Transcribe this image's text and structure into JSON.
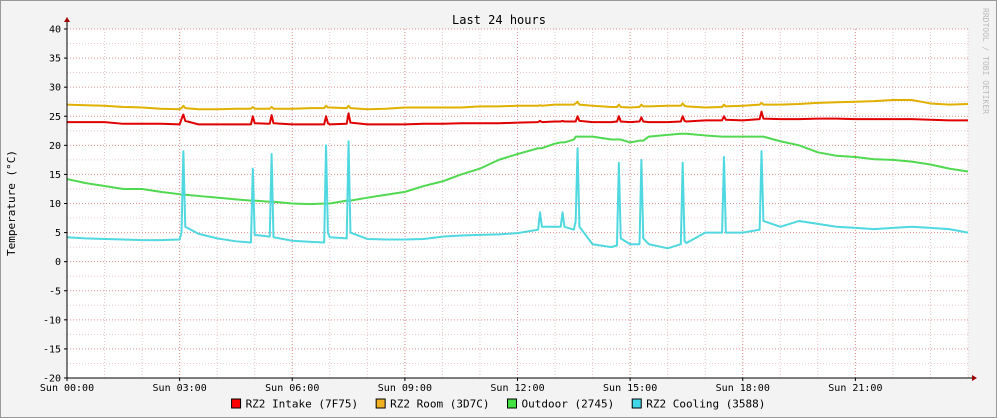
{
  "chart_data": {
    "type": "line",
    "title": "Last 24 hours",
    "y_label": "Temperature (°C)",
    "watermark": "RRDTOOL / TOBI OETIKER",
    "x": [
      0,
      0.5,
      1,
      1.5,
      2,
      2.5,
      3,
      3.05,
      3.1,
      3.15,
      3.5,
      4,
      4.5,
      4.9,
      4.95,
      5,
      5.4,
      5.45,
      5.5,
      6,
      6.5,
      6.85,
      6.9,
      6.95,
      7,
      7.45,
      7.5,
      7.55,
      8,
      8.5,
      9,
      9.5,
      10,
      10.5,
      11,
      11.5,
      12,
      12.55,
      12.6,
      12.65,
      13,
      13.15,
      13.2,
      13.25,
      13.5,
      13.55,
      13.6,
      13.65,
      14,
      14.5,
      14.65,
      14.7,
      14.75,
      15,
      15.25,
      15.3,
      15.35,
      15.5,
      16,
      16.35,
      16.4,
      16.45,
      16.5,
      17,
      17.45,
      17.5,
      17.55,
      18,
      18.45,
      18.5,
      18.55,
      19,
      19.5,
      20,
      20.5,
      21,
      21.5,
      22,
      22.5,
      23,
      23.5,
      24
    ],
    "series": [
      {
        "name": "RZ2 Intake (7F75)",
        "color": "#e00000",
        "values": [
          24,
          24,
          24,
          23.7,
          23.7,
          23.7,
          23.6,
          24.5,
          25.3,
          24.2,
          23.6,
          23.6,
          23.6,
          23.6,
          25,
          23.8,
          23.7,
          25.2,
          23.8,
          23.6,
          23.6,
          23.6,
          25,
          23.8,
          23.6,
          23.7,
          25.5,
          23.9,
          23.6,
          23.6,
          23.6,
          23.7,
          23.7,
          23.8,
          23.8,
          23.8,
          23.9,
          24,
          24.2,
          24,
          24.1,
          24.1,
          24.2,
          24.1,
          24.1,
          24.1,
          25,
          24.2,
          24,
          24,
          24.1,
          25,
          24.1,
          24,
          24.1,
          24.8,
          24.1,
          24,
          24,
          24.1,
          25,
          24.2,
          24.1,
          24.3,
          24.3,
          25,
          24.4,
          24.3,
          24.5,
          25.8,
          24.6,
          24.5,
          24.5,
          24.6,
          24.6,
          24.5,
          24.5,
          24.5,
          24.5,
          24.4,
          24.3,
          24.3
        ]
      },
      {
        "name": "RZ2 Room (3D7C)",
        "color": "#e0b000",
        "values": [
          27,
          26.9,
          26.8,
          26.6,
          26.5,
          26.3,
          26.2,
          26.4,
          26.8,
          26.4,
          26.2,
          26.2,
          26.3,
          26.3,
          26.6,
          26.3,
          26.3,
          26.6,
          26.3,
          26.3,
          26.4,
          26.4,
          26.8,
          26.5,
          26.5,
          26.4,
          26.8,
          26.4,
          26.2,
          26.3,
          26.5,
          26.5,
          26.5,
          26.5,
          26.7,
          26.7,
          26.8,
          26.8,
          26.9,
          26.8,
          27,
          27,
          27,
          27,
          27,
          27.2,
          27.5,
          27,
          26.8,
          26.6,
          26.6,
          27,
          26.6,
          26.5,
          26.6,
          27,
          26.7,
          26.7,
          26.8,
          26.8,
          27.2,
          26.8,
          26.7,
          26.5,
          26.6,
          27,
          26.7,
          26.8,
          27,
          27.3,
          27,
          27,
          27.1,
          27.3,
          27.4,
          27.5,
          27.6,
          27.8,
          27.8,
          27.2,
          27,
          27.1
        ]
      },
      {
        "name": "Outdoor (2745)",
        "color": "#50d850",
        "values": [
          14.2,
          13.5,
          13,
          12.5,
          12.5,
          12,
          11.6,
          11.5,
          11.5,
          11.5,
          11.3,
          11,
          10.7,
          10.5,
          10.5,
          10.5,
          10.3,
          10.3,
          10.3,
          10,
          9.9,
          10,
          10,
          10,
          10,
          10.5,
          10.5,
          10.5,
          11,
          11.5,
          12,
          13,
          13.8,
          15,
          16,
          17.5,
          18.5,
          19.5,
          19.5,
          19.5,
          20.3,
          20.5,
          20.5,
          20.5,
          21,
          21.5,
          21.5,
          21.5,
          21.5,
          21,
          21,
          21,
          21,
          20.5,
          20.8,
          20.8,
          20.8,
          21.5,
          21.8,
          22,
          22,
          22,
          22,
          21.7,
          21.5,
          21.5,
          21.5,
          21.5,
          21.5,
          21.5,
          21.5,
          20.7,
          20,
          18.8,
          18.2,
          18,
          17.6,
          17.5,
          17.2,
          16.7,
          16,
          15.5
        ]
      },
      {
        "name": "RZ2 Cooling (3588)",
        "color": "#50d8e0",
        "values": [
          4.2,
          4,
          3.9,
          3.8,
          3.7,
          3.7,
          3.8,
          5,
          19,
          6,
          4.8,
          4,
          3.5,
          3.3,
          16,
          4.6,
          4.3,
          18.5,
          4.2,
          3.6,
          3.4,
          3.3,
          20,
          5,
          4.2,
          4,
          20.7,
          5,
          3.9,
          3.8,
          3.8,
          3.9,
          4.3,
          4.5,
          4.6,
          4.7,
          4.9,
          5.5,
          8.5,
          6,
          6,
          6,
          8.5,
          6,
          5.5,
          7,
          19.5,
          6,
          3,
          2.5,
          2.8,
          17,
          4,
          3,
          3,
          17.5,
          4,
          3,
          2.3,
          3,
          17,
          3.5,
          3.2,
          5,
          5,
          18,
          5,
          5,
          5.5,
          19,
          7,
          6,
          7,
          6.5,
          6,
          5.8,
          5.6,
          5.8,
          6,
          5.8,
          5.6,
          5
        ]
      }
    ],
    "legend_colors": [
      "#ff0000",
      "#f0b020",
      "#40e040",
      "#40d8e8"
    ],
    "xlim": [
      0,
      24
    ],
    "xticks": [
      {
        "value": 0,
        "label": "Sun 00:00"
      },
      {
        "value": 3,
        "label": "Sun 03:00"
      },
      {
        "value": 6,
        "label": "Sun 06:00"
      },
      {
        "value": 9,
        "label": "Sun 09:00"
      },
      {
        "value": 12,
        "label": "Sun 12:00"
      },
      {
        "value": 15,
        "label": "Sun 15:00"
      },
      {
        "value": 18,
        "label": "Sun 18:00"
      },
      {
        "value": 21,
        "label": "Sun 21:00"
      }
    ],
    "ylim": [
      -20,
      40
    ],
    "yticks": [
      -20,
      -15,
      -10,
      -5,
      0,
      5,
      10,
      15,
      20,
      25,
      30,
      35,
      40
    ],
    "grid": true,
    "legend": "bottom"
  }
}
